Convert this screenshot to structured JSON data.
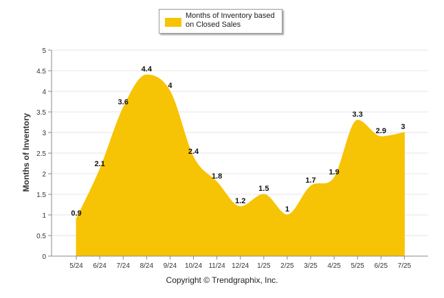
{
  "chart_data": {
    "type": "area",
    "categories": [
      "5/24",
      "6/24",
      "7/24",
      "8/24",
      "9/24",
      "10/24",
      "11/24",
      "12/24",
      "1/25",
      "2/25",
      "3/25",
      "4/25",
      "5/25",
      "6/25",
      "7/25"
    ],
    "series": [
      {
        "name": "Months of Inventory based on Closed Sales",
        "values": [
          0.9,
          2.1,
          3.6,
          4.4,
          4,
          2.4,
          1.8,
          1.2,
          1.5,
          1,
          1.7,
          1.9,
          3.3,
          2.9,
          3
        ]
      }
    ],
    "data_labels": [
      "0.9",
      "2.1",
      "3.6",
      "4.4",
      "4",
      "2.4",
      "1.8",
      "1.2",
      "1.5",
      "1",
      "1.7",
      "1.9",
      "3.3",
      "2.9",
      "3"
    ],
    "ylabel": "Months of Inventory",
    "xlabel": "",
    "ylim": [
      0,
      5
    ],
    "yticks": [
      "0",
      "0.5",
      "1",
      "1.5",
      "2",
      "2.5",
      "3",
      "3.5",
      "4",
      "4.5",
      "5"
    ],
    "grid": true,
    "legend_position": "top-center",
    "colors": {
      "fill": "#f7c305",
      "grid": "#e6e6e6",
      "axis": "#888888"
    }
  },
  "legend": {
    "label": "Months of Inventory based on Closed Sales"
  },
  "footer": {
    "copyright": "Copyright © Trendgraphix, Inc."
  }
}
